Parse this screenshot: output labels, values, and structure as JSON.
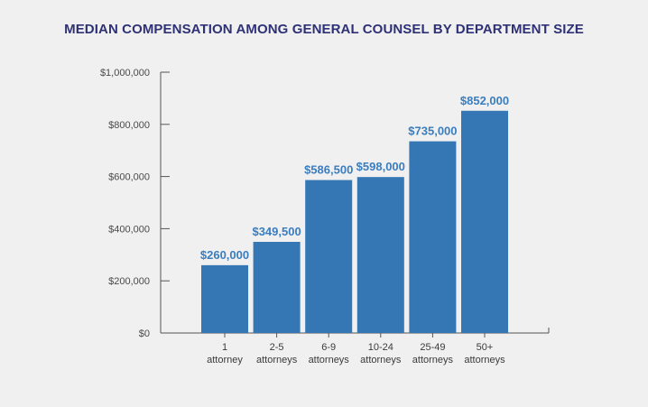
{
  "chart_data": {
    "type": "bar",
    "title": "MEDIAN COMPENSATION AMONG GENERAL COUNSEL BY DEPARTMENT SIZE",
    "categories": [
      [
        "1",
        "attorney"
      ],
      [
        "2-5",
        "attorneys"
      ],
      [
        "6-9",
        "attorneys"
      ],
      [
        "10-24",
        "attorneys"
      ],
      [
        "25-49",
        "attorneys"
      ],
      [
        "50+",
        "attorneys"
      ]
    ],
    "values": [
      260000,
      349500,
      586500,
      598000,
      735000,
      852000
    ],
    "value_labels": [
      "$260,000",
      "$349,500",
      "$586,500",
      "$598,000",
      "$735,000",
      "$852,000"
    ],
    "ylim": [
      0,
      1000000
    ],
    "yticks": [
      0,
      200000,
      400000,
      600000,
      800000,
      1000000
    ],
    "ytick_labels": [
      "$0",
      "$200,000",
      "$400,000",
      "$600,000",
      "$800,000",
      "$1,000,000"
    ],
    "xlabel": "",
    "ylabel": "",
    "grid": false,
    "colors": {
      "bar": "#3576b5",
      "data_label": "#3a7dbf",
      "title": "#2e3175",
      "axis": "#555555"
    }
  }
}
